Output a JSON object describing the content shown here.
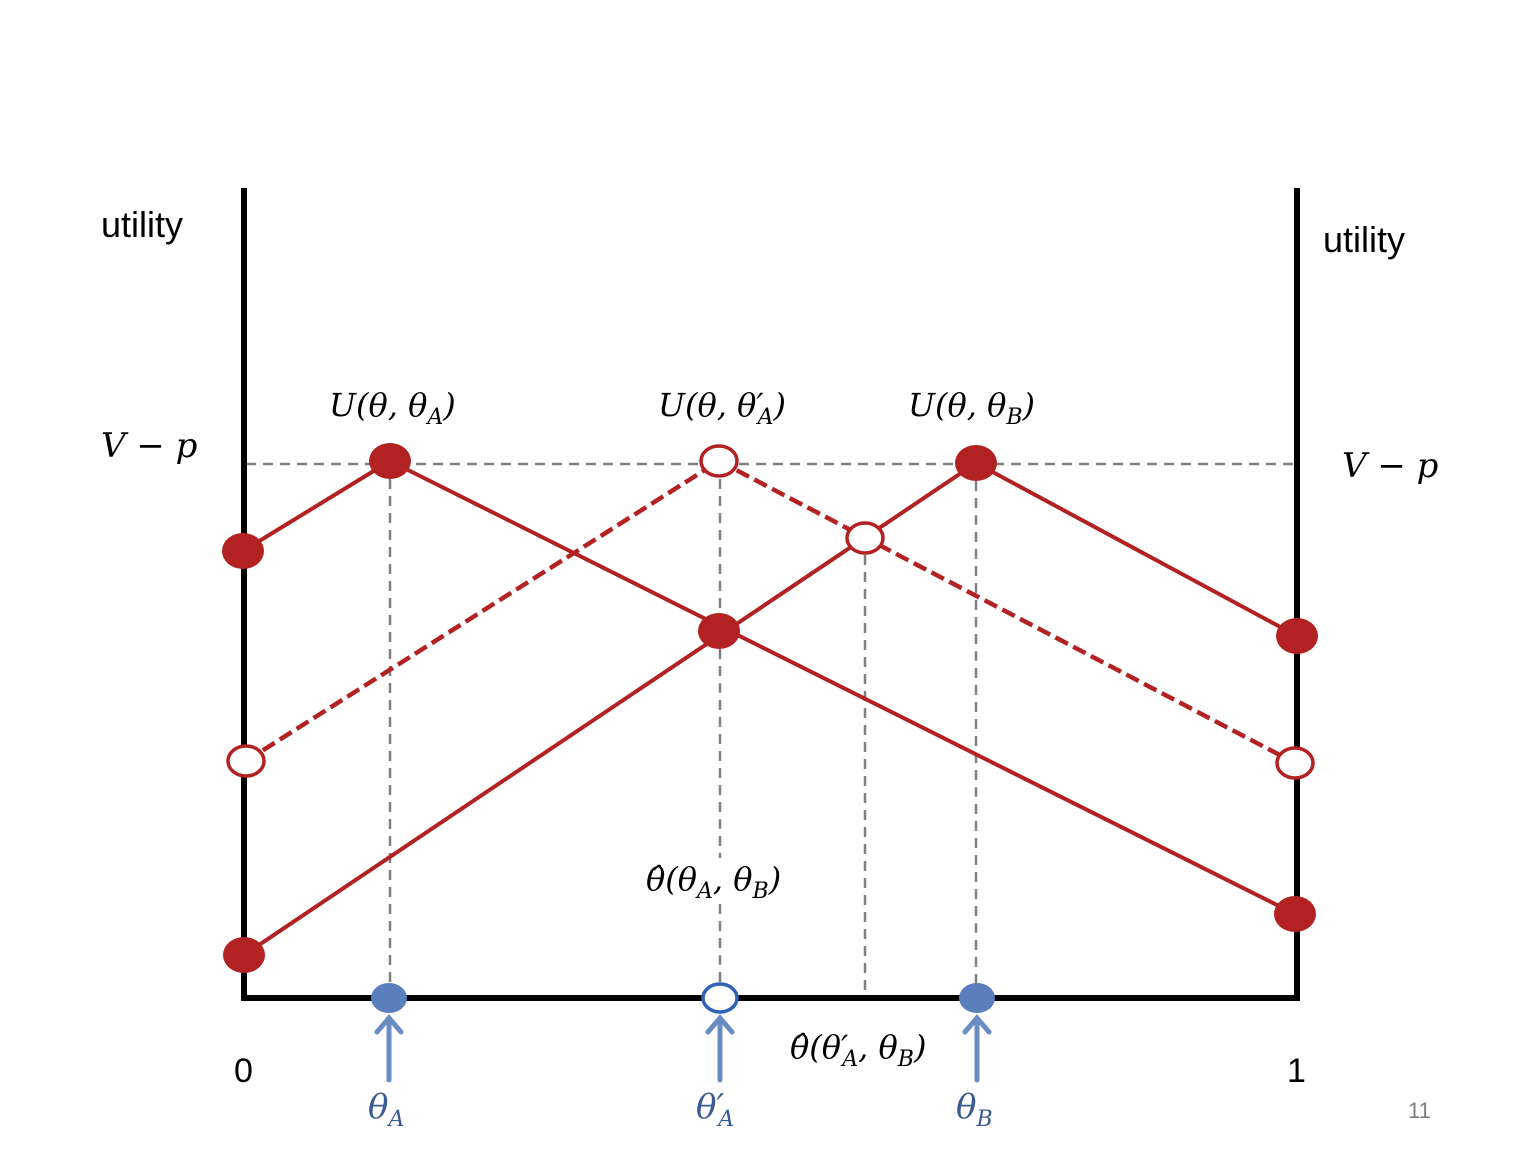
{
  "labels": {
    "utility_left": "utility",
    "utility_right": "utility",
    "v_minus_p_left": "V − p",
    "v_minus_p_right": "V − p",
    "x_zero": "0",
    "x_one": "1",
    "page_number": "11"
  },
  "curves": {
    "u_theta_a": {
      "label_main": "U(θ, θ",
      "label_sub": "A",
      "label_close": ")"
    },
    "u_theta_a_prime": {
      "label_main": "U(θ, θ′",
      "label_sub": "A",
      "label_close": ")"
    },
    "u_theta_b": {
      "label_main": "U(θ, θ",
      "label_sub": "B",
      "label_close": ")"
    }
  },
  "annotations": {
    "theta_hat_ab": {
      "main": "θ̂(θ",
      "sub1": "A",
      "mid": ", θ",
      "sub2": "B",
      "close": ")"
    },
    "theta_hat_a_prime_b": {
      "main": "θ̂(θ′",
      "sub1": "A",
      "mid": ", θ",
      "sub2": "B",
      "close": ")"
    }
  },
  "markers": {
    "theta_a": {
      "main": "θ",
      "sub": "A"
    },
    "theta_a_prime": {
      "main": "θ′",
      "sub": "A"
    },
    "theta_b": {
      "main": "θ",
      "sub": "B"
    }
  },
  "colors": {
    "curve_red": "#b22222",
    "axis": "#000000",
    "guide_gray": "#808080",
    "marker_blue": "#5b7fbd",
    "arrow_blue": "#6a8cc4"
  }
}
